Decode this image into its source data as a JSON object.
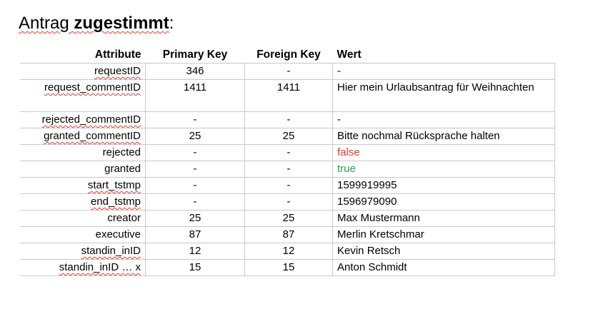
{
  "title": {
    "prefix": "Antrag ",
    "bold": "zugestimmt",
    "suffix": ":"
  },
  "table": {
    "headers": {
      "attribute": "Attribute",
      "primary_key": "Primary Key",
      "foreign_key": "Foreign Key",
      "value": "Wert"
    },
    "rows": [
      {
        "attribute": "requestID",
        "pk": "346",
        "fk": "-",
        "value": "-"
      },
      {
        "attribute": "request_commentID",
        "pk": "1411",
        "fk": "1411",
        "value": "Hier mein Urlaubsantrag für Weihnachten"
      },
      {
        "attribute": "rejected_commentID",
        "pk": "-",
        "fk": "-",
        "value": "-"
      },
      {
        "attribute": "granted_commentID",
        "pk": "25",
        "fk": "25",
        "value": "Bitte nochmal Rücksprache halten"
      },
      {
        "attribute": "rejected",
        "pk": "-",
        "fk": "-",
        "value": "false"
      },
      {
        "attribute": "granted",
        "pk": "-",
        "fk": "-",
        "value": "true"
      },
      {
        "attribute": "start_tstmp",
        "pk": "-",
        "fk": "-",
        "value": "1599919995"
      },
      {
        "attribute": "end_tstmp",
        "pk": "-",
        "fk": "-",
        "value": "1596979090"
      },
      {
        "attribute": "creator",
        "pk": "25",
        "fk": "25",
        "value": "Max Mustermann"
      },
      {
        "attribute": "executive",
        "pk": "87",
        "fk": "87",
        "value": "Merlin Kretschmar"
      },
      {
        "attribute": "standin_inID",
        "pk": "12",
        "fk": "12",
        "value": "Kevin Retsch"
      },
      {
        "attribute": "standin_inID … x",
        "pk": "15",
        "fk": "15",
        "value": "Anton Schmidt"
      }
    ]
  },
  "colors": {
    "false_value": "#e53935",
    "true_value": "#2e9a4e",
    "spellcheck_underline": "#e53935"
  }
}
